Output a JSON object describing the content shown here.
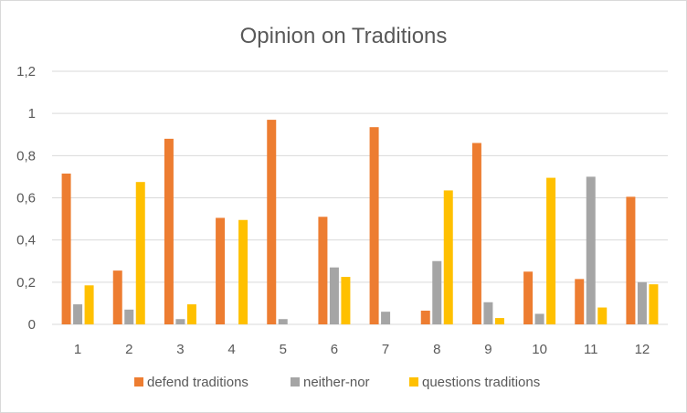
{
  "chart_data": {
    "type": "bar",
    "title": "Opinion on Traditions",
    "xlabel": "",
    "ylabel": "",
    "categories": [
      "1",
      "2",
      "3",
      "4",
      "5",
      "6",
      "7",
      "8",
      "9",
      "10",
      "11",
      "12"
    ],
    "series": [
      {
        "name": "defend traditions",
        "color": "#ED7D31",
        "values": [
          0.715,
          0.255,
          0.88,
          0.505,
          0.97,
          0.51,
          0.935,
          0.065,
          0.86,
          0.25,
          0.215,
          0.605
        ]
      },
      {
        "name": "neither-nor",
        "color": "#A5A5A5",
        "values": [
          0.095,
          0.07,
          0.025,
          0.0,
          0.025,
          0.27,
          0.06,
          0.3,
          0.105,
          0.05,
          0.7,
          0.2
        ]
      },
      {
        "name": "questions traditions",
        "color": "#FFC000",
        "values": [
          0.185,
          0.675,
          0.095,
          0.495,
          0.0,
          0.225,
          0.0,
          0.635,
          0.03,
          0.695,
          0.08,
          0.19
        ]
      }
    ],
    "ylim": [
      0,
      1.2
    ],
    "yticks": [
      0,
      0.2,
      0.4,
      0.6,
      0.8,
      1,
      1.2
    ],
    "ytick_labels": [
      "0",
      "0,2",
      "0,4",
      "0,6",
      "0,8",
      "1",
      "1,2"
    ],
    "grid": true,
    "legend": "bottom"
  }
}
